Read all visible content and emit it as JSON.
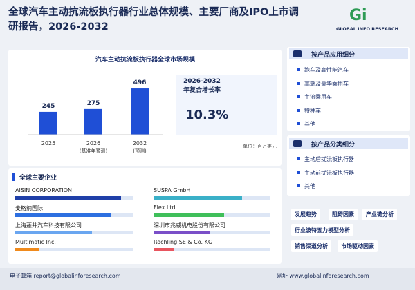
{
  "header": {
    "title_line1": "全球汽车主动抗流板执行器行业总体规模、主要厂商及IPO上市调",
    "title_line2": "研报告，2026-2032",
    "logo_mark": "Gi",
    "logo_text": "GLOBAL INFO RESEARCH"
  },
  "chart_data": {
    "type": "bar",
    "title": "汽车主动抗流板执行器全球市场规模",
    "categories": [
      "2025",
      "2026",
      "2032"
    ],
    "category_notes": [
      null,
      "(基准年预测)",
      "(预测)"
    ],
    "values": [
      245,
      275,
      496
    ],
    "color": "#1f4fd6",
    "unit": "单位：百万美元"
  },
  "cagr": {
    "period": "2026-2032",
    "label": "年复合增长率",
    "value": "10.3%"
  },
  "companies": {
    "title": "全球主要企业",
    "items": [
      {
        "name": "AISIN CORPORATION",
        "bar_percent": 90,
        "color": "#1f3fa8"
      },
      {
        "name": "SUSPA GmbH",
        "bar_percent": 76,
        "color": "#3ab0c8"
      },
      {
        "name": "麦格纳国际",
        "bar_percent": 82,
        "color": "#2d6fe0"
      },
      {
        "name": "Flex Ltd.",
        "bar_percent": 61,
        "color": "#3fbf5a"
      },
      {
        "name": "上海蓬井汽车科技有限公司",
        "bar_percent": 65,
        "color": "#6aa6f0"
      },
      {
        "name": "深圳市兆威机电股份有限公司",
        "bar_percent": 49,
        "color": "#7a4fc8"
      },
      {
        "name": "Multimatic Inc.",
        "bar_percent": 20,
        "color": "#f08a1c"
      },
      {
        "name": "Röchling SE & Co. KG",
        "bar_percent": 17,
        "color": "#e8555f"
      }
    ]
  },
  "application": {
    "title": "按产品应用细分",
    "items": [
      "跑车及高性能汽车",
      "高端及豪华乘用车",
      "主流乘用车",
      "特种车",
      "其他"
    ]
  },
  "product_type": {
    "title": "按产品分类细分",
    "items": [
      "主动后扰流板执行器",
      "主动前扰流板执行器",
      "其他"
    ]
  },
  "tags": [
    "发展趋势",
    "阻碍因素",
    "产业链分析",
    "行业波特五力模型分析",
    "销售渠道分析",
    "市场驱动因素"
  ],
  "footer": {
    "email_label": "电子邮箱",
    "email": "report@globalinforesearch.com",
    "web_label": "网址",
    "web": "www.globalinforesearch.com"
  }
}
